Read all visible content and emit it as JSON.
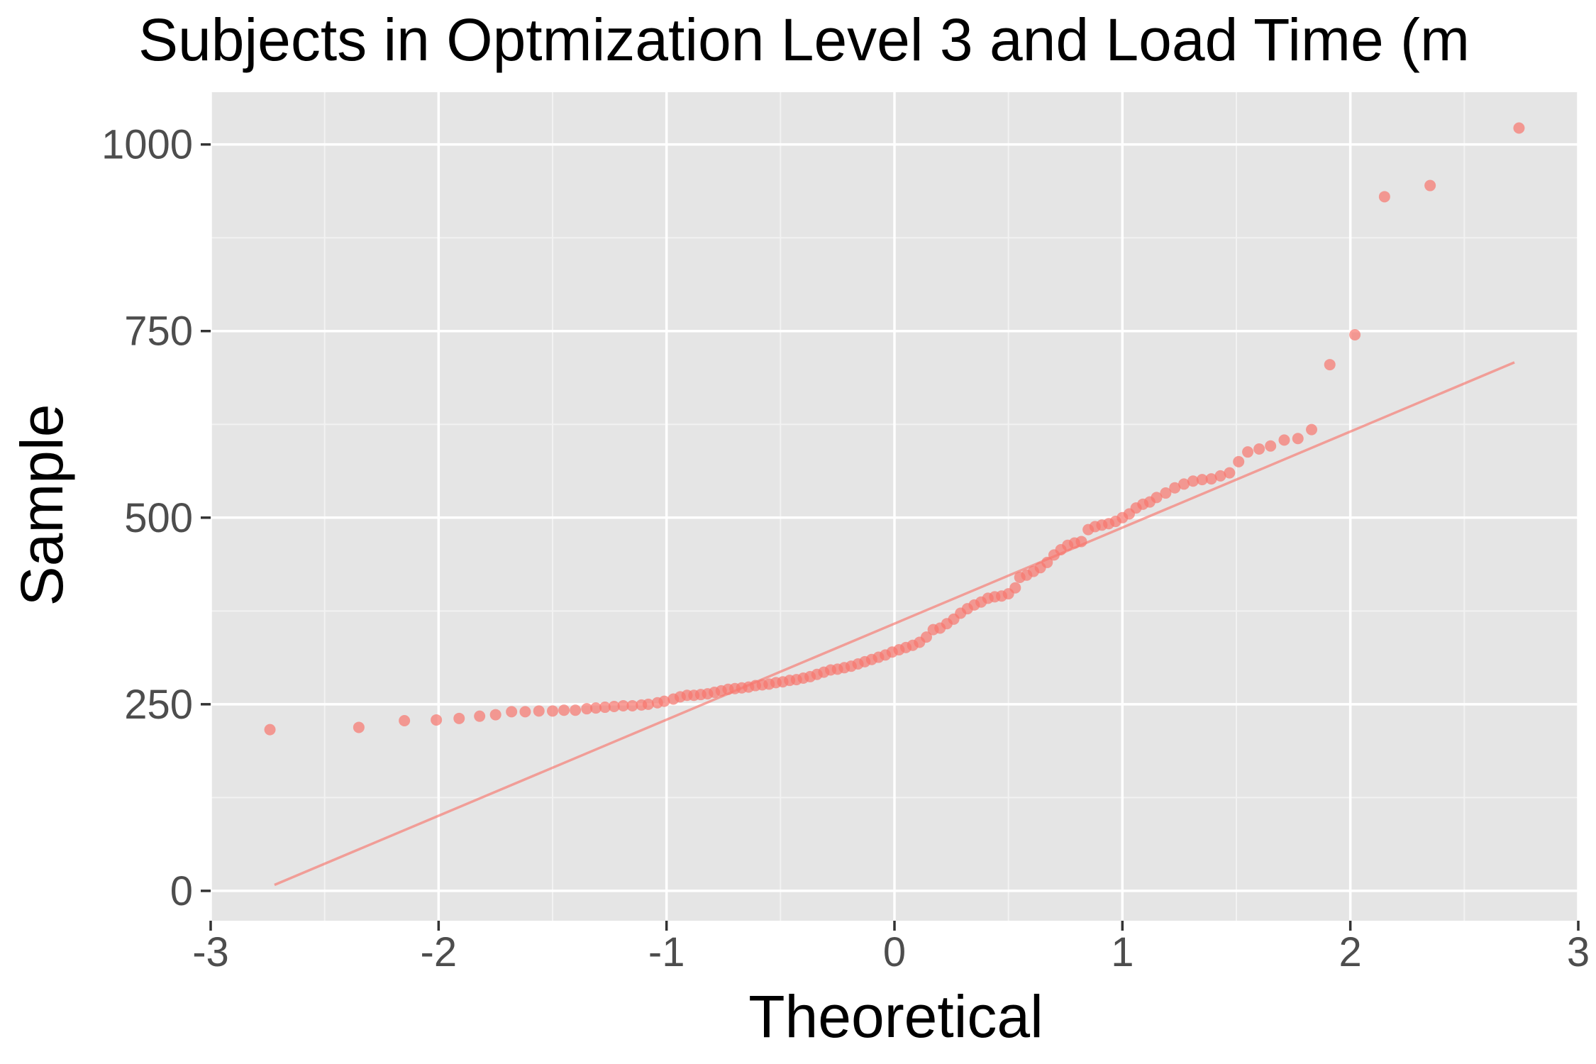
{
  "chart_data": {
    "type": "scatter",
    "title": "Subjects in Optmization Level 3 and Load Time (m",
    "xlabel": "Theoretical",
    "ylabel": "Sample",
    "xlim": [
      -3,
      3
    ],
    "ylim": [
      -40,
      1070
    ],
    "x_ticks": [
      -3,
      -2,
      -1,
      0,
      1,
      2,
      3
    ],
    "x_tick_labels": [
      "-3",
      "-2",
      "-1",
      "0",
      "1",
      "2",
      "3"
    ],
    "y_ticks": [
      0,
      250,
      500,
      750,
      1000
    ],
    "y_tick_labels": [
      "0",
      "250",
      "500",
      "750",
      "1000"
    ],
    "grid": true,
    "legend": "none",
    "colors": {
      "panel": "#e5e5e5",
      "grid_major": "#ffffff",
      "grid_minor": "#f2f2f2",
      "point": "#f8766d",
      "line": "#f8766d"
    },
    "reference_line": {
      "x": [
        -2.72,
        2.72
      ],
      "y": [
        8,
        708
      ]
    },
    "points": [
      [
        -2.74,
        216
      ],
      [
        -2.35,
        219
      ],
      [
        -2.15,
        228
      ],
      [
        -2.01,
        229
      ],
      [
        -1.91,
        231
      ],
      [
        -1.82,
        234
      ],
      [
        -1.75,
        236
      ],
      [
        -1.68,
        240
      ],
      [
        -1.62,
        240
      ],
      [
        -1.56,
        241
      ],
      [
        -1.5,
        241
      ],
      [
        -1.45,
        242
      ],
      [
        -1.4,
        242
      ],
      [
        -1.35,
        244
      ],
      [
        -1.31,
        245
      ],
      [
        -1.27,
        246
      ],
      [
        -1.23,
        247
      ],
      [
        -1.19,
        248
      ],
      [
        -1.15,
        248
      ],
      [
        -1.11,
        249
      ],
      [
        -1.08,
        250
      ],
      [
        -1.04,
        252
      ],
      [
        -1.01,
        254
      ],
      [
        -0.97,
        257
      ],
      [
        -0.94,
        260
      ],
      [
        -0.91,
        262
      ],
      [
        -0.88,
        262
      ],
      [
        -0.85,
        263
      ],
      [
        -0.82,
        264
      ],
      [
        -0.79,
        266
      ],
      [
        -0.76,
        268
      ],
      [
        -0.73,
        270
      ],
      [
        -0.7,
        271
      ],
      [
        -0.67,
        272
      ],
      [
        -0.64,
        273
      ],
      [
        -0.61,
        275
      ],
      [
        -0.58,
        276
      ],
      [
        -0.55,
        277
      ],
      [
        -0.52,
        279
      ],
      [
        -0.49,
        280
      ],
      [
        -0.46,
        282
      ],
      [
        -0.43,
        283
      ],
      [
        -0.4,
        285
      ],
      [
        -0.37,
        287
      ],
      [
        -0.34,
        290
      ],
      [
        -0.31,
        293
      ],
      [
        -0.28,
        296
      ],
      [
        -0.25,
        297
      ],
      [
        -0.22,
        299
      ],
      [
        -0.19,
        301
      ],
      [
        -0.16,
        304
      ],
      [
        -0.13,
        307
      ],
      [
        -0.1,
        310
      ],
      [
        -0.07,
        313
      ],
      [
        -0.04,
        316
      ],
      [
        -0.01,
        320
      ],
      [
        0.02,
        323
      ],
      [
        0.05,
        326
      ],
      [
        0.08,
        329
      ],
      [
        0.11,
        333
      ],
      [
        0.14,
        340
      ],
      [
        0.17,
        350
      ],
      [
        0.2,
        352
      ],
      [
        0.23,
        358
      ],
      [
        0.26,
        364
      ],
      [
        0.29,
        372
      ],
      [
        0.32,
        378
      ],
      [
        0.35,
        383
      ],
      [
        0.38,
        387
      ],
      [
        0.41,
        392
      ],
      [
        0.44,
        394
      ],
      [
        0.47,
        395
      ],
      [
        0.5,
        398
      ],
      [
        0.53,
        406
      ],
      [
        0.55,
        420
      ],
      [
        0.58,
        423
      ],
      [
        0.61,
        428
      ],
      [
        0.64,
        433
      ],
      [
        0.67,
        440
      ],
      [
        0.7,
        450
      ],
      [
        0.73,
        457
      ],
      [
        0.76,
        463
      ],
      [
        0.79,
        466
      ],
      [
        0.82,
        468
      ],
      [
        0.85,
        484
      ],
      [
        0.88,
        488
      ],
      [
        0.91,
        490
      ],
      [
        0.94,
        492
      ],
      [
        0.97,
        495
      ],
      [
        1.0,
        500
      ],
      [
        1.03,
        505
      ],
      [
        1.06,
        513
      ],
      [
        1.09,
        518
      ],
      [
        1.12,
        521
      ],
      [
        1.15,
        527
      ],
      [
        1.19,
        533
      ],
      [
        1.23,
        540
      ],
      [
        1.27,
        545
      ],
      [
        1.31,
        549
      ],
      [
        1.35,
        551
      ],
      [
        1.39,
        552
      ],
      [
        1.43,
        556
      ],
      [
        1.47,
        560
      ],
      [
        1.51,
        575
      ],
      [
        1.55,
        588
      ],
      [
        1.6,
        592
      ],
      [
        1.65,
        596
      ],
      [
        1.71,
        604
      ],
      [
        1.77,
        606
      ],
      [
        1.83,
        618
      ],
      [
        1.91,
        705
      ],
      [
        2.02,
        745
      ],
      [
        2.15,
        930
      ],
      [
        2.35,
        945
      ],
      [
        2.74,
        1022
      ]
    ]
  }
}
